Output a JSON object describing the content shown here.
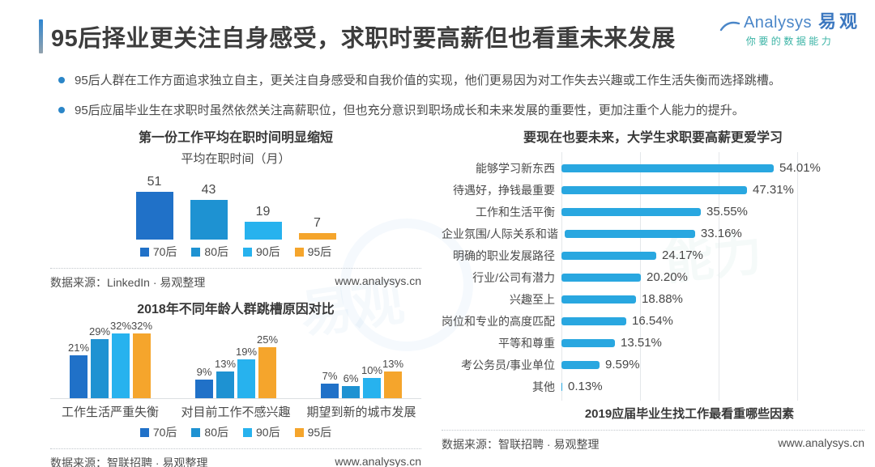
{
  "header": {
    "title": "95后择业更关注自身感受，求职时要高薪但也看重未来发展",
    "logo": {
      "brand_latin": "Analysys",
      "brand_cn": "易观",
      "tagline": "你要的数据能力"
    }
  },
  "bullets": [
    "95后人群在工作方面追求独立自主，更关注自身感受和自我价值的实现，他们更易因为对工作失去兴趣或工作生活失衡而选择跳槽。",
    "95后应届毕业生在求职时虽然依然关注高薪职位，但也充分意识到职场成长和未来发展的重要性，更加注重个人能力的提升。"
  ],
  "colors": {
    "gen70": "#2071c8",
    "gen80": "#1e92d2",
    "gen90": "#27b2ee",
    "gen95": "#f5a52c",
    "hbar": "#29a7e0",
    "accent": "#2e86d1"
  },
  "chart_data": [
    {
      "id": "tenure",
      "type": "bar",
      "title": "第一份工作平均在职时间明显缩短",
      "subtitle": "平均在职时间（月）",
      "categories": [
        "70后",
        "80后",
        "90后",
        "95后"
      ],
      "values": [
        51,
        43,
        19,
        7
      ],
      "colors": [
        "#2071c8",
        "#1e92d2",
        "#27b2ee",
        "#f5a52c"
      ],
      "ylabel": "在职时间(月)",
      "legend_position": "bottom",
      "grid": false,
      "source": "数据来源：LinkedIn · 易观整理",
      "site": "www.analysys.cn"
    },
    {
      "id": "jobhop",
      "type": "bar",
      "title": "2018年不同年龄人群跳槽原因对比",
      "categories": [
        "工作生活严重失衡",
        "对目前工作不感兴趣",
        "期望到新的城市发展"
      ],
      "series": [
        {
          "name": "70后",
          "color": "#2071c8",
          "values": [
            21,
            9,
            7
          ]
        },
        {
          "name": "80后",
          "color": "#1e92d2",
          "values": [
            29,
            13,
            6
          ]
        },
        {
          "name": "90后",
          "color": "#27b2ee",
          "values": [
            32,
            19,
            10
          ]
        },
        {
          "name": "95后",
          "color": "#f5a52c",
          "values": [
            32,
            25,
            13
          ]
        }
      ],
      "unit": "%",
      "ylim": [
        0,
        35
      ],
      "legend_position": "bottom",
      "grid": false,
      "source": "数据来源：智联招聘 · 易观整理",
      "site": "www.analysys.cn"
    },
    {
      "id": "factors",
      "type": "bar-horizontal",
      "title": "要现在也要未来，大学生求职要高薪更爱学习",
      "caption": "2019应届毕业生找工作最看重哪些因素",
      "categories": [
        "能够学习新东西",
        "待遇好，挣钱最重要",
        "工作和生活平衡",
        "企业氛围/人际关系和谐",
        "明确的职业发展路径",
        "行业/公司有潜力",
        "兴趣至上",
        "岗位和专业的高度匹配",
        "平等和尊重",
        "考公务员/事业单位",
        "其他"
      ],
      "values": [
        54.01,
        47.31,
        35.55,
        33.16,
        24.17,
        20.2,
        18.88,
        16.54,
        13.51,
        9.59,
        0.13
      ],
      "labels": [
        "54.01%",
        "47.31%",
        "35.55%",
        "33.16%",
        "24.17%",
        "20.20%",
        "18.88%",
        "16.54%",
        "13.51%",
        "9.59%",
        "0.13%"
      ],
      "unit": "%",
      "xlim": [
        0,
        60
      ],
      "gridlines": [
        0,
        20,
        40,
        60
      ],
      "bar_color": "#29a7e0",
      "grid": true,
      "source": "数据来源：智联招聘 · 易观整理",
      "site": "www.analysys.cn"
    }
  ]
}
